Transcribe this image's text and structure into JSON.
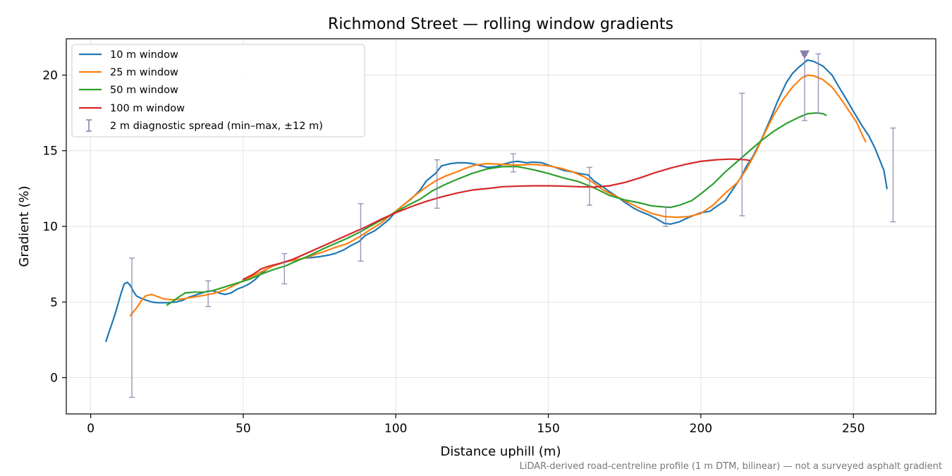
{
  "chart_data": {
    "type": "line",
    "title": "Richmond Street — rolling window gradients",
    "xlabel": "Distance uphill (m)",
    "ylabel": "Gradient (%)",
    "xlim": [
      -8,
      277
    ],
    "ylim": [
      -2.4,
      22.4
    ],
    "xticks": [
      0,
      50,
      100,
      150,
      200,
      250
    ],
    "yticks": [
      0,
      5,
      10,
      15,
      20
    ],
    "grid": true,
    "legend_position": "top-left",
    "footnote": "LiDAR-derived road-centreline profile (1 m DTM, bilinear) — not a surveyed asphalt gradient",
    "series": [
      {
        "name": "10 m window",
        "color": "#1f77b4",
        "points": [
          [
            5,
            2.4
          ],
          [
            8,
            4.2
          ],
          [
            10,
            5.6
          ],
          [
            11,
            6.2
          ],
          [
            12,
            6.3
          ],
          [
            13,
            6.1
          ],
          [
            14,
            5.7
          ],
          [
            15,
            5.4
          ],
          [
            17,
            5.2
          ],
          [
            20,
            5.0
          ],
          [
            22,
            4.95
          ],
          [
            25,
            4.95
          ],
          [
            28,
            5.0
          ],
          [
            30,
            5.1
          ],
          [
            32,
            5.3
          ],
          [
            35,
            5.5
          ],
          [
            38,
            5.7
          ],
          [
            40,
            5.75
          ],
          [
            42,
            5.6
          ],
          [
            44,
            5.5
          ],
          [
            46,
            5.6
          ],
          [
            48,
            5.85
          ],
          [
            50,
            6.0
          ],
          [
            52,
            6.2
          ],
          [
            54,
            6.5
          ],
          [
            56,
            6.9
          ],
          [
            58,
            7.2
          ],
          [
            60,
            7.4
          ],
          [
            63,
            7.6
          ],
          [
            65,
            7.7
          ],
          [
            68,
            7.8
          ],
          [
            70,
            7.9
          ],
          [
            73,
            7.95
          ],
          [
            75,
            8.0
          ],
          [
            78,
            8.1
          ],
          [
            80,
            8.2
          ],
          [
            83,
            8.45
          ],
          [
            85,
            8.7
          ],
          [
            88,
            9.0
          ],
          [
            90,
            9.4
          ],
          [
            93,
            9.7
          ],
          [
            95,
            10.0
          ],
          [
            98,
            10.5
          ],
          [
            100,
            11.0
          ],
          [
            103,
            11.5
          ],
          [
            105,
            11.8
          ],
          [
            108,
            12.4
          ],
          [
            110,
            13.0
          ],
          [
            113,
            13.5
          ],
          [
            115,
            14.0
          ],
          [
            118,
            14.15
          ],
          [
            120,
            14.2
          ],
          [
            123,
            14.2
          ],
          [
            125,
            14.15
          ],
          [
            128,
            14.0
          ],
          [
            130,
            13.9
          ],
          [
            133,
            13.95
          ],
          [
            135,
            14.1
          ],
          [
            138,
            14.25
          ],
          [
            140,
            14.3
          ],
          [
            143,
            14.2
          ],
          [
            145,
            14.25
          ],
          [
            148,
            14.2
          ],
          [
            150,
            14.05
          ],
          [
            153,
            13.85
          ],
          [
            155,
            13.7
          ],
          [
            158,
            13.6
          ],
          [
            160,
            13.5
          ],
          [
            163,
            13.4
          ],
          [
            165,
            13.0
          ],
          [
            168,
            12.6
          ],
          [
            170,
            12.3
          ],
          [
            173,
            11.9
          ],
          [
            175,
            11.6
          ],
          [
            178,
            11.2
          ],
          [
            180,
            11.0
          ],
          [
            183,
            10.75
          ],
          [
            185,
            10.55
          ],
          [
            188,
            10.2
          ],
          [
            190,
            10.15
          ],
          [
            193,
            10.3
          ],
          [
            195,
            10.5
          ],
          [
            198,
            10.75
          ],
          [
            200,
            10.9
          ],
          [
            203,
            11.0
          ],
          [
            205,
            11.3
          ],
          [
            208,
            11.7
          ],
          [
            210,
            12.3
          ],
          [
            213,
            13.2
          ],
          [
            215,
            14.0
          ],
          [
            217,
            14.6
          ],
          [
            220,
            15.8
          ],
          [
            223,
            17.2
          ],
          [
            225,
            18.2
          ],
          [
            228,
            19.5
          ],
          [
            230,
            20.1
          ],
          [
            232,
            20.5
          ],
          [
            235,
            21.0
          ],
          [
            237,
            20.9
          ],
          [
            240,
            20.6
          ],
          [
            243,
            20.0
          ],
          [
            245,
            19.3
          ],
          [
            248,
            18.3
          ],
          [
            250,
            17.6
          ],
          [
            253,
            16.6
          ],
          [
            255,
            16.0
          ],
          [
            257,
            15.2
          ],
          [
            259,
            14.2
          ],
          [
            260,
            13.7
          ],
          [
            261,
            12.5
          ]
        ]
      },
      {
        "name": "25 m window",
        "color": "#ff7f0e",
        "points": [
          [
            13,
            4.1
          ],
          [
            15,
            4.6
          ],
          [
            17,
            5.2
          ],
          [
            18,
            5.4
          ],
          [
            20,
            5.5
          ],
          [
            22,
            5.35
          ],
          [
            24,
            5.2
          ],
          [
            27,
            5.15
          ],
          [
            30,
            5.2
          ],
          [
            33,
            5.3
          ],
          [
            36,
            5.4
          ],
          [
            40,
            5.55
          ],
          [
            44,
            5.8
          ],
          [
            47,
            6.1
          ],
          [
            50,
            6.4
          ],
          [
            53,
            6.7
          ],
          [
            56,
            7.0
          ],
          [
            60,
            7.4
          ],
          [
            63,
            7.6
          ],
          [
            66,
            7.75
          ],
          [
            70,
            7.9
          ],
          [
            73,
            8.1
          ],
          [
            76,
            8.3
          ],
          [
            80,
            8.6
          ],
          [
            84,
            8.85
          ],
          [
            88,
            9.3
          ],
          [
            91,
            9.7
          ],
          [
            95,
            10.2
          ],
          [
            98,
            10.7
          ],
          [
            100,
            11.0
          ],
          [
            103,
            11.5
          ],
          [
            106,
            12.0
          ],
          [
            110,
            12.6
          ],
          [
            113,
            13.0
          ],
          [
            116,
            13.3
          ],
          [
            120,
            13.6
          ],
          [
            123,
            13.85
          ],
          [
            126,
            14.05
          ],
          [
            130,
            14.15
          ],
          [
            135,
            14.1
          ],
          [
            140,
            14.05
          ],
          [
            145,
            14.1
          ],
          [
            150,
            14.0
          ],
          [
            154,
            13.85
          ],
          [
            158,
            13.6
          ],
          [
            162,
            13.25
          ],
          [
            165,
            12.85
          ],
          [
            168,
            12.4
          ],
          [
            172,
            12.0
          ],
          [
            176,
            11.6
          ],
          [
            180,
            11.2
          ],
          [
            184,
            10.85
          ],
          [
            188,
            10.65
          ],
          [
            192,
            10.6
          ],
          [
            196,
            10.65
          ],
          [
            200,
            10.85
          ],
          [
            204,
            11.4
          ],
          [
            208,
            12.2
          ],
          [
            212,
            12.9
          ],
          [
            215,
            13.8
          ],
          [
            218,
            14.9
          ],
          [
            221,
            16.2
          ],
          [
            224,
            17.4
          ],
          [
            227,
            18.4
          ],
          [
            230,
            19.2
          ],
          [
            233,
            19.8
          ],
          [
            235,
            20.0
          ],
          [
            237,
            19.95
          ],
          [
            240,
            19.7
          ],
          [
            243,
            19.2
          ],
          [
            246,
            18.4
          ],
          [
            249,
            17.5
          ],
          [
            251,
            16.9
          ],
          [
            253,
            16.0
          ],
          [
            254,
            15.6
          ]
        ]
      },
      {
        "name": "50 m window",
        "color": "#2ca02c",
        "points": [
          [
            25,
            4.8
          ],
          [
            27,
            5.05
          ],
          [
            29,
            5.35
          ],
          [
            31,
            5.6
          ],
          [
            34,
            5.65
          ],
          [
            37,
            5.65
          ],
          [
            40,
            5.75
          ],
          [
            44,
            6.0
          ],
          [
            48,
            6.25
          ],
          [
            52,
            6.5
          ],
          [
            56,
            6.85
          ],
          [
            60,
            7.15
          ],
          [
            64,
            7.4
          ],
          [
            68,
            7.75
          ],
          [
            72,
            8.1
          ],
          [
            76,
            8.5
          ],
          [
            80,
            8.85
          ],
          [
            84,
            9.2
          ],
          [
            88,
            9.6
          ],
          [
            92,
            10.05
          ],
          [
            96,
            10.5
          ],
          [
            100,
            10.95
          ],
          [
            104,
            11.4
          ],
          [
            108,
            11.8
          ],
          [
            112,
            12.35
          ],
          [
            116,
            12.75
          ],
          [
            120,
            13.1
          ],
          [
            125,
            13.5
          ],
          [
            130,
            13.8
          ],
          [
            135,
            13.95
          ],
          [
            140,
            13.95
          ],
          [
            145,
            13.75
          ],
          [
            150,
            13.5
          ],
          [
            155,
            13.2
          ],
          [
            160,
            12.95
          ],
          [
            165,
            12.55
          ],
          [
            170,
            12.05
          ],
          [
            175,
            11.75
          ],
          [
            180,
            11.55
          ],
          [
            184,
            11.35
          ],
          [
            187,
            11.3
          ],
          [
            190,
            11.25
          ],
          [
            193,
            11.4
          ],
          [
            197,
            11.7
          ],
          [
            200,
            12.15
          ],
          [
            204,
            12.8
          ],
          [
            208,
            13.6
          ],
          [
            212,
            14.3
          ],
          [
            216,
            15.0
          ],
          [
            220,
            15.7
          ],
          [
            224,
            16.3
          ],
          [
            228,
            16.8
          ],
          [
            232,
            17.2
          ],
          [
            235,
            17.45
          ],
          [
            238,
            17.5
          ],
          [
            240,
            17.45
          ],
          [
            241,
            17.35
          ]
        ]
      },
      {
        "name": "100 m window",
        "color": "#d62728",
        "points": [
          [
            50,
            6.5
          ],
          [
            53,
            6.8
          ],
          [
            56,
            7.2
          ],
          [
            59,
            7.4
          ],
          [
            62,
            7.55
          ],
          [
            66,
            7.8
          ],
          [
            70,
            8.15
          ],
          [
            75,
            8.6
          ],
          [
            80,
            9.05
          ],
          [
            85,
            9.5
          ],
          [
            90,
            9.95
          ],
          [
            95,
            10.45
          ],
          [
            100,
            10.9
          ],
          [
            105,
            11.3
          ],
          [
            110,
            11.65
          ],
          [
            115,
            11.95
          ],
          [
            120,
            12.2
          ],
          [
            125,
            12.4
          ],
          [
            130,
            12.5
          ],
          [
            135,
            12.62
          ],
          [
            140,
            12.66
          ],
          [
            145,
            12.68
          ],
          [
            150,
            12.68
          ],
          [
            155,
            12.66
          ],
          [
            160,
            12.62
          ],
          [
            165,
            12.6
          ],
          [
            170,
            12.68
          ],
          [
            175,
            12.9
          ],
          [
            180,
            13.2
          ],
          [
            185,
            13.55
          ],
          [
            190,
            13.85
          ],
          [
            195,
            14.1
          ],
          [
            200,
            14.3
          ],
          [
            205,
            14.4
          ],
          [
            210,
            14.45
          ],
          [
            215,
            14.4
          ],
          [
            216,
            14.35
          ]
        ]
      }
    ],
    "error_bars": {
      "name": "2 m diagnostic spread (min–max, ±12 m)",
      "color": "#8a82ab",
      "bars": [
        {
          "x": 13.5,
          "low": -1.3,
          "high": 7.9
        },
        {
          "x": 38.5,
          "low": 4.7,
          "high": 6.4
        },
        {
          "x": 63.5,
          "low": 6.2,
          "high": 8.2
        },
        {
          "x": 88.5,
          "low": 7.7,
          "high": 11.5
        },
        {
          "x": 113.5,
          "low": 11.2,
          "high": 14.4
        },
        {
          "x": 138.5,
          "low": 13.6,
          "high": 14.8
        },
        {
          "x": 163.5,
          "low": 11.4,
          "high": 13.9
        },
        {
          "x": 188.5,
          "low": 10.0,
          "high": 11.3
        },
        {
          "x": 213.5,
          "low": 10.7,
          "high": 18.8
        },
        {
          "x": 234,
          "low": 17.0,
          "high": 21.3
        },
        {
          "x": 238.5,
          "low": 17.5,
          "high": 21.4
        },
        {
          "x": 263,
          "low": 10.3,
          "high": 16.5
        }
      ]
    },
    "peak_marker": {
      "x": 234,
      "y": 21.35,
      "color": "#8a7fab"
    }
  }
}
